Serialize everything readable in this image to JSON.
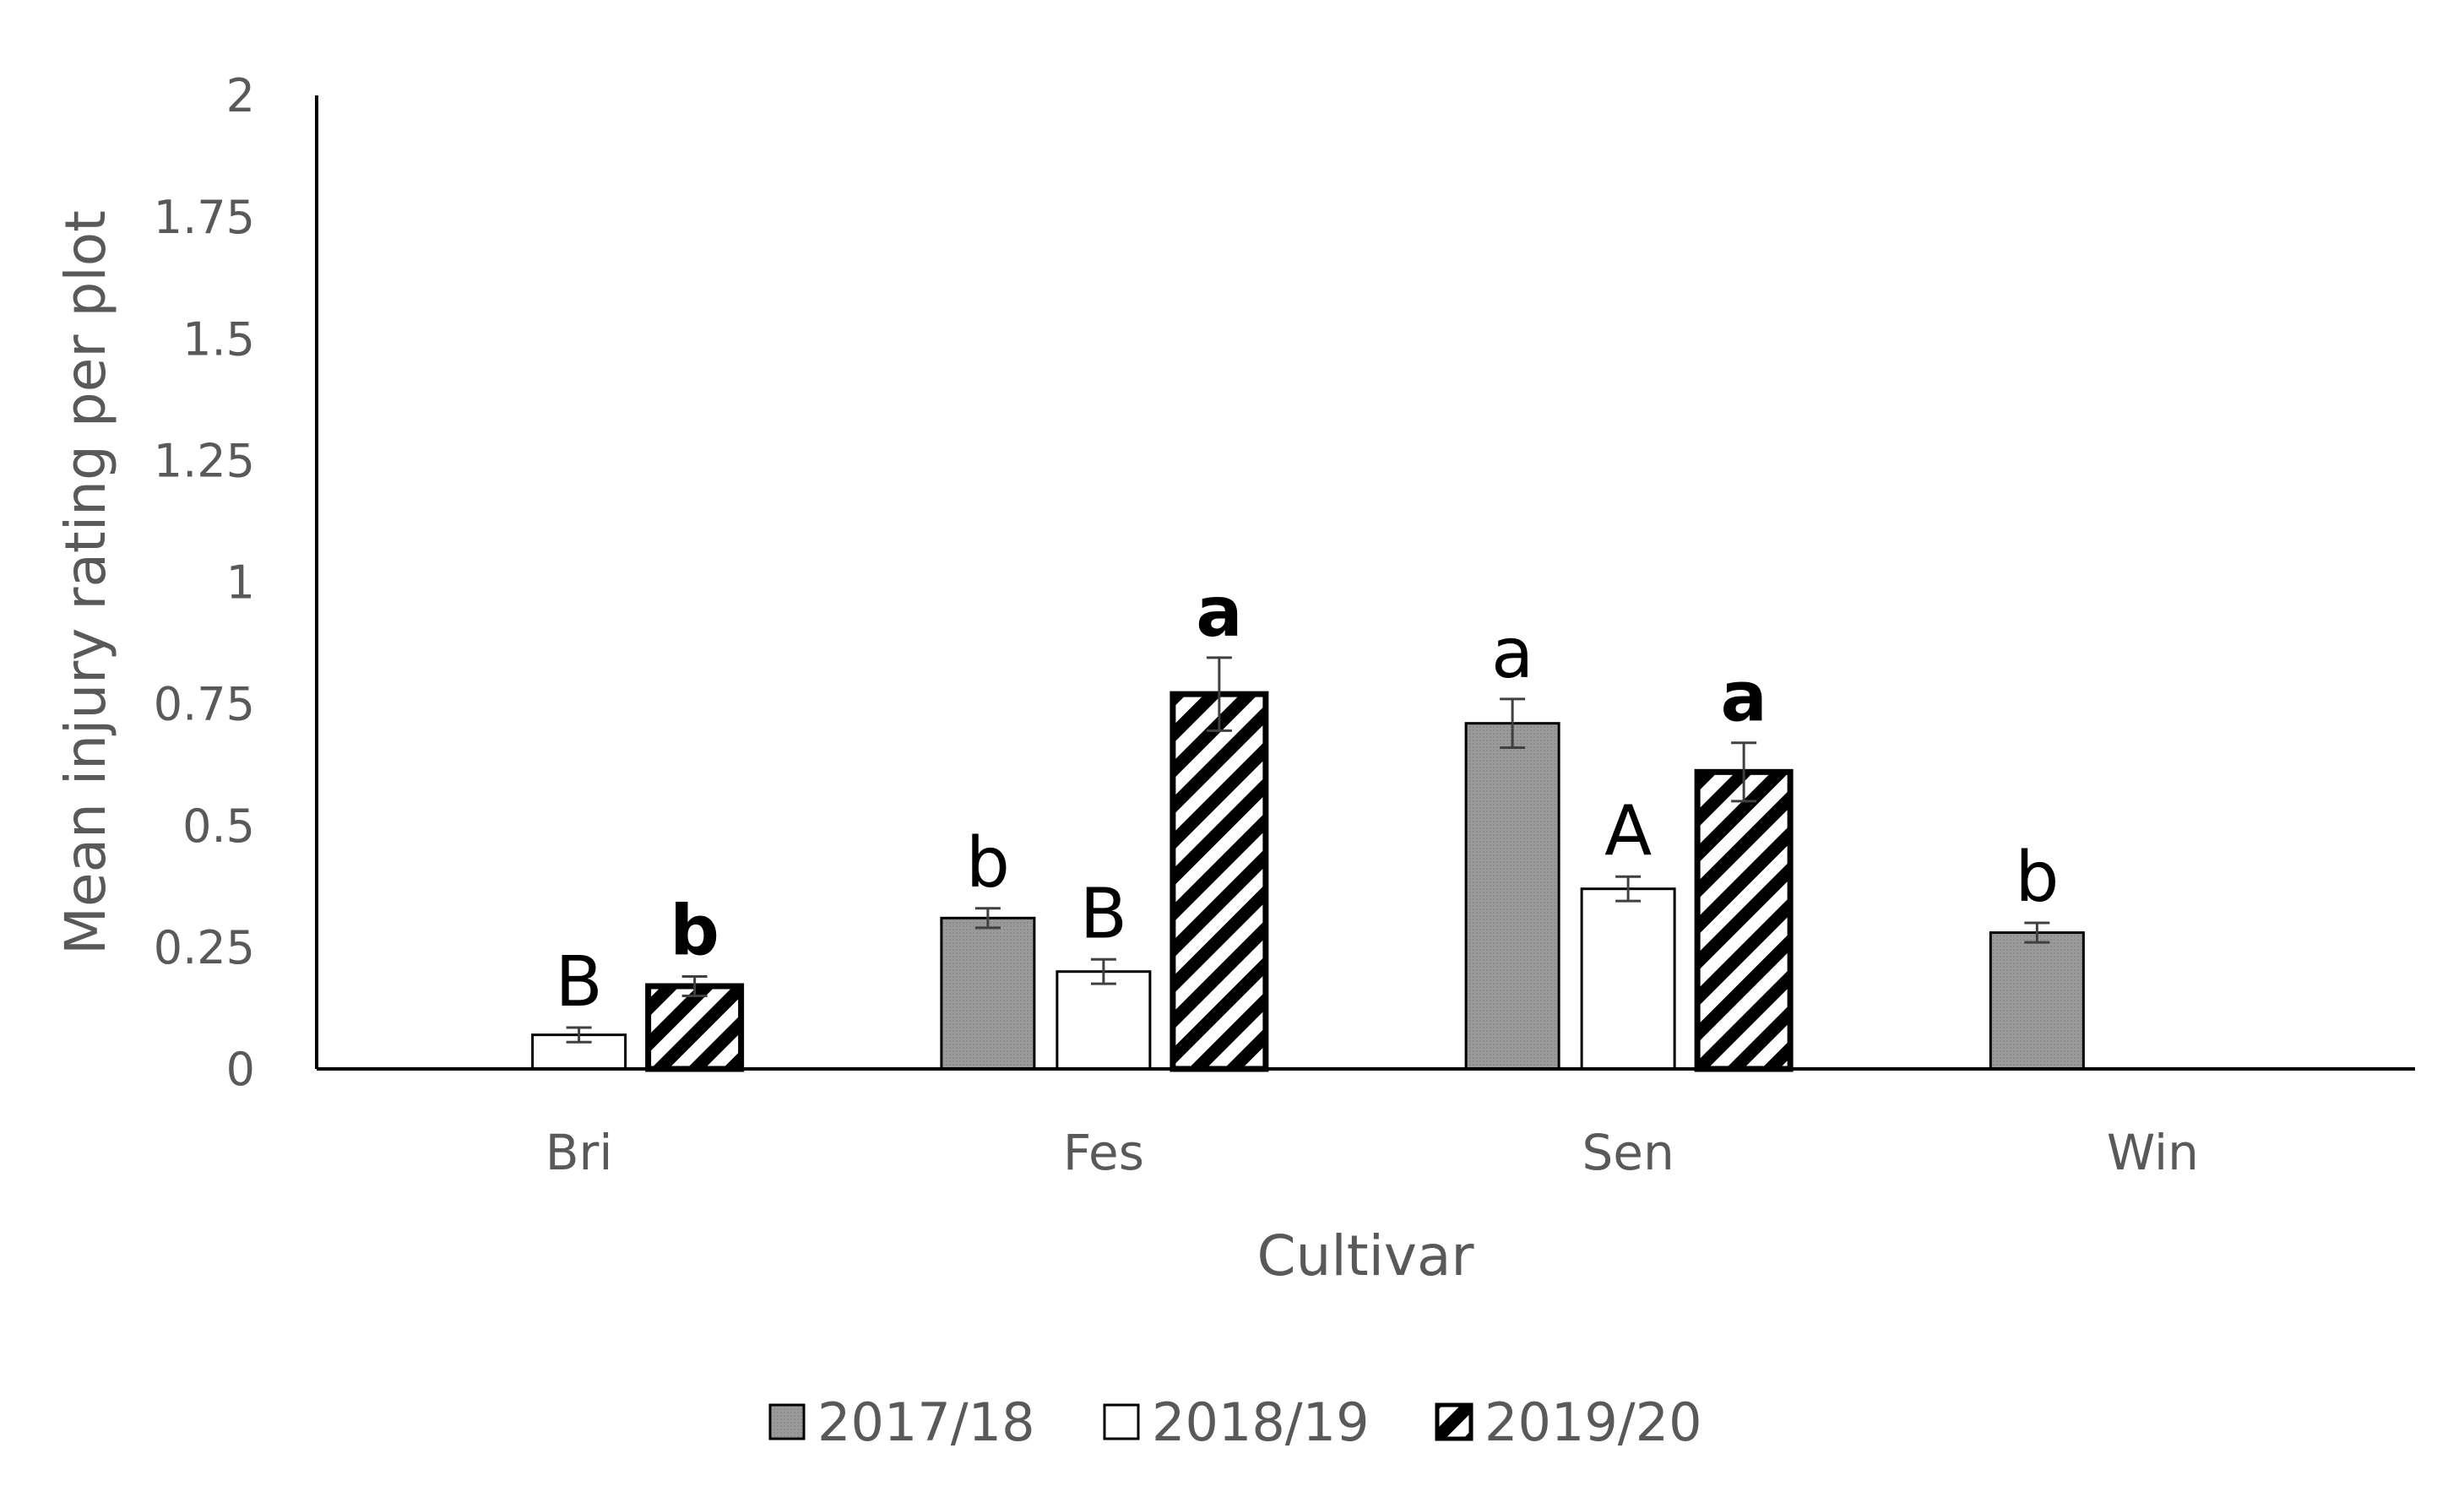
{
  "chart_data": {
    "type": "bar",
    "title": "",
    "xlabel": "Cultivar",
    "ylabel": "Mean injury rating per plot",
    "ylim": [
      0,
      2
    ],
    "yticks": [
      "0",
      "0.25",
      "0.5",
      "0.75",
      "1",
      "1.25",
      "1.5",
      "1.75",
      "2"
    ],
    "categories": [
      "Bri",
      "Fes",
      "Sen",
      "Win"
    ],
    "grid": false,
    "legend_position": "bottom",
    "series": [
      {
        "name": "2017/18",
        "fill": "#9a9a9a",
        "values": [
          null,
          0.31,
          0.71,
          0.28
        ],
        "errors": [
          null,
          0.02,
          0.05,
          0.02
        ],
        "letters": [
          "",
          "b",
          "a",
          "b"
        ],
        "letters_bold": false
      },
      {
        "name": "2018/19",
        "fill": "#ffffff",
        "values": [
          0.07,
          0.2,
          0.37,
          null
        ],
        "errors": [
          0.015,
          0.025,
          0.025,
          null
        ],
        "letters": [
          "B",
          "B",
          "A",
          ""
        ],
        "letters_bold": false
      },
      {
        "name": "2019/20",
        "fill": "hatch",
        "values": [
          0.17,
          0.77,
          0.61,
          null
        ],
        "errors": [
          0.02,
          0.075,
          0.06,
          null
        ],
        "letters": [
          "b",
          "a",
          "a",
          ""
        ],
        "letters_bold": true
      }
    ]
  }
}
